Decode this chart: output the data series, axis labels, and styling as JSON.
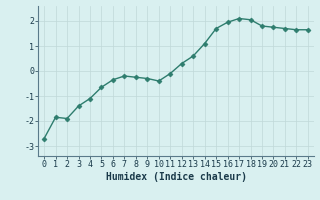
{
  "x": [
    0,
    1,
    2,
    3,
    4,
    5,
    6,
    7,
    8,
    9,
    10,
    11,
    12,
    13,
    14,
    15,
    16,
    17,
    18,
    19,
    20,
    21,
    22,
    23
  ],
  "y": [
    -2.7,
    -1.85,
    -1.9,
    -1.4,
    -1.1,
    -0.65,
    -0.35,
    -0.2,
    -0.25,
    -0.3,
    -0.4,
    -0.1,
    0.3,
    0.6,
    1.1,
    1.7,
    1.95,
    2.1,
    2.05,
    1.8,
    1.75,
    1.7,
    1.65,
    1.65
  ],
  "line_color": "#2e7d6e",
  "marker": "D",
  "marker_size": 2.5,
  "bg_color": "#d9f0f0",
  "grid_color": "#c0d8d8",
  "xlabel": "Humidex (Indice chaleur)",
  "xlabel_fontsize": 7,
  "yticks": [
    -3,
    -2,
    -1,
    0,
    1,
    2
  ],
  "ytick_labels": [
    "-3",
    "-2",
    "-1",
    "0",
    "1",
    "2"
  ],
  "xticks": [
    0,
    1,
    2,
    3,
    4,
    5,
    6,
    7,
    8,
    9,
    10,
    11,
    12,
    13,
    14,
    15,
    16,
    17,
    18,
    19,
    20,
    21,
    22,
    23
  ],
  "ylim": [
    -3.4,
    2.6
  ],
  "xlim": [
    -0.5,
    23.5
  ],
  "tick_fontsize": 6,
  "tick_color": "#1a3a4a",
  "spine_color": "#5a7a8a",
  "linewidth": 1.0
}
